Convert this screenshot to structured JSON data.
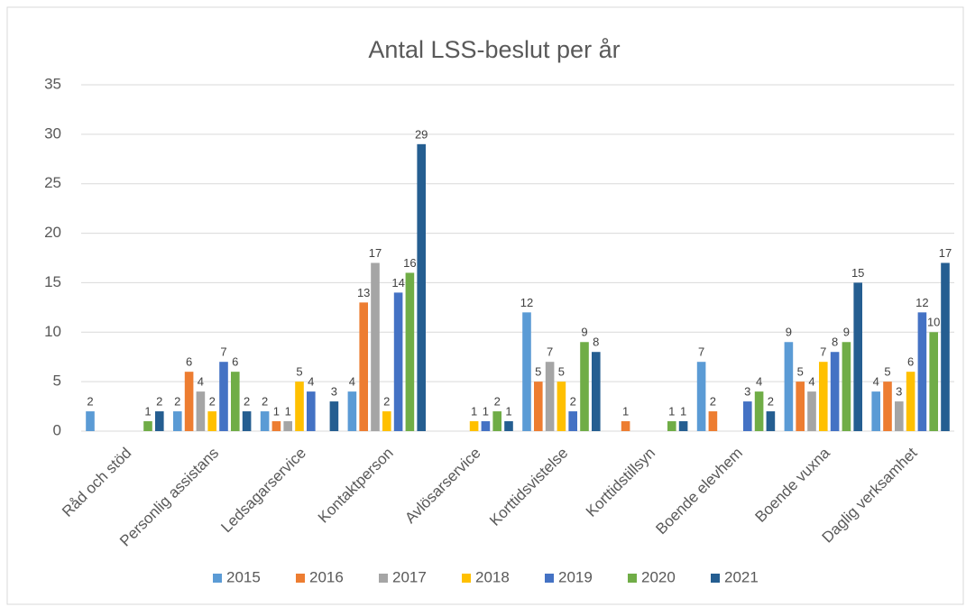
{
  "chart_data": {
    "type": "bar",
    "title": "Antal LSS-beslut per år",
    "categories": [
      "Råd och stöd",
      "Personlig assistans",
      "Ledsagarservice",
      "Kontaktperson",
      "Avlösarservice",
      "Korttidsvistelse",
      "Korttidstillsyn",
      "Boende elevhem",
      "Boende vuxna",
      "Daglig verksamhet"
    ],
    "series": [
      {
        "name": "2015",
        "color": "#5b9bd5",
        "values": [
          2,
          2,
          2,
          4,
          null,
          12,
          null,
          7,
          9,
          4
        ]
      },
      {
        "name": "2016",
        "color": "#ed7d31",
        "values": [
          null,
          6,
          1,
          13,
          null,
          5,
          1,
          2,
          5,
          5
        ]
      },
      {
        "name": "2017",
        "color": "#a5a5a5",
        "values": [
          null,
          4,
          1,
          17,
          null,
          7,
          null,
          null,
          4,
          3
        ]
      },
      {
        "name": "2018",
        "color": "#ffc000",
        "values": [
          null,
          2,
          5,
          2,
          1,
          5,
          null,
          null,
          7,
          6
        ]
      },
      {
        "name": "2019",
        "color": "#4472c4",
        "values": [
          null,
          7,
          4,
          14,
          1,
          2,
          null,
          3,
          8,
          12
        ]
      },
      {
        "name": "2020",
        "color": "#70ad47",
        "values": [
          1,
          6,
          null,
          16,
          2,
          9,
          1,
          4,
          9,
          10
        ]
      },
      {
        "name": "2021",
        "color": "#255e91",
        "values": [
          2,
          2,
          3,
          29,
          1,
          8,
          1,
          2,
          15,
          17
        ]
      }
    ],
    "ylim": [
      0,
      35
    ],
    "yticks": [
      0,
      5,
      10,
      15,
      20,
      25,
      30,
      35
    ],
    "grid": true,
    "legend": "bottom"
  }
}
